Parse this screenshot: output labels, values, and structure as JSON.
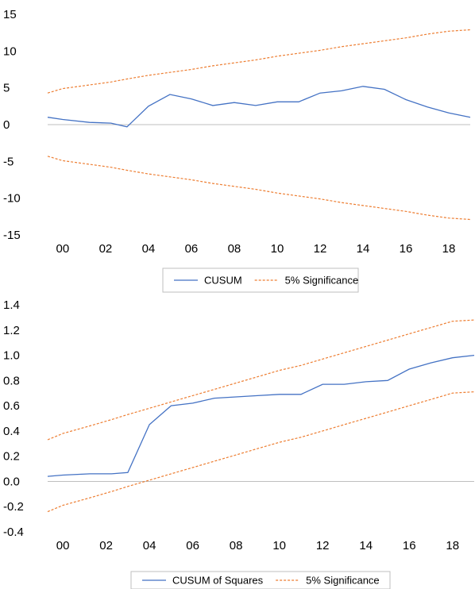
{
  "chart_data": [
    {
      "type": "line",
      "x": [
        1999.3,
        2000,
        2001.25,
        2002.25,
        2003,
        2004,
        2005,
        2006,
        2007,
        2008,
        2009,
        2010,
        2011,
        2012,
        2013,
        2014,
        2015,
        2016,
        2017,
        2018,
        2019
      ],
      "x_tick_labels": [
        "00",
        "02",
        "04",
        "06",
        "08",
        "10",
        "12",
        "14",
        "16",
        "18"
      ],
      "x_tick_values": [
        2000,
        2002,
        2004,
        2006,
        2008,
        2010,
        2012,
        2014,
        2016,
        2018
      ],
      "xlim": [
        1999.3,
        2019
      ],
      "ylim": [
        -15,
        15
      ],
      "y_ticks": [
        15,
        10,
        5,
        0,
        -5,
        -10,
        -15
      ],
      "y_tick_labels": [
        "15",
        "10",
        "5",
        "0",
        "-5",
        "-10",
        "-15"
      ],
      "series": [
        {
          "name": "CUSUM",
          "color": "#4472c4",
          "style": "solid",
          "values": [
            1.0,
            0.7,
            0.3,
            0.2,
            -0.3,
            2.5,
            4.1,
            3.5,
            2.6,
            3.0,
            2.6,
            3.1,
            3.1,
            4.3,
            4.6,
            5.2,
            4.8,
            3.4,
            2.4,
            1.6,
            1.0
          ]
        },
        {
          "name": "5% Significance",
          "color": "#ed7d31",
          "style": "dashed",
          "values": [
            4.3,
            4.9,
            5.4,
            5.8,
            6.2,
            6.7,
            7.1,
            7.5,
            8.0,
            8.4,
            8.8,
            9.3,
            9.7,
            10.1,
            10.6,
            11.0,
            11.4,
            11.8,
            12.3,
            12.7,
            12.9
          ]
        },
        {
          "name": "5% Significance",
          "color": "#ed7d31",
          "style": "dashed",
          "values": [
            -4.3,
            -4.9,
            -5.4,
            -5.8,
            -6.2,
            -6.7,
            -7.1,
            -7.5,
            -8.0,
            -8.4,
            -8.8,
            -9.3,
            -9.7,
            -10.1,
            -10.6,
            -11.0,
            -11.4,
            -11.8,
            -12.3,
            -12.7,
            -12.9
          ]
        }
      ],
      "legend": [
        "CUSUM",
        "5% Significance"
      ],
      "legend_placement": "bottom-center",
      "grid": false,
      "zero_line": true
    },
    {
      "type": "line",
      "x": [
        1999.3,
        2000,
        2001.25,
        2002.25,
        2003,
        2004,
        2005,
        2006,
        2007,
        2008,
        2009,
        2010,
        2011,
        2012,
        2013,
        2014,
        2015,
        2016,
        2017,
        2018,
        2019
      ],
      "x_tick_labels": [
        "00",
        "02",
        "04",
        "06",
        "08",
        "10",
        "12",
        "14",
        "16",
        "18"
      ],
      "x_tick_values": [
        2000,
        2002,
        2004,
        2006,
        2008,
        2010,
        2012,
        2014,
        2016,
        2018
      ],
      "xlim": [
        1999.3,
        2019
      ],
      "ylim": [
        -0.4,
        1.4
      ],
      "y_ticks": [
        1.4,
        1.2,
        1.0,
        0.8,
        0.6,
        0.4,
        0.2,
        0.0,
        -0.2,
        -0.4
      ],
      "y_tick_labels": [
        "1.4",
        "1.2",
        "1.0",
        "0.8",
        "0.6",
        "0.4",
        "0.2",
        "0.0",
        "-0.2",
        "-0.4"
      ],
      "series": [
        {
          "name": "CUSUM of Squares",
          "color": "#4472c4",
          "style": "solid",
          "values": [
            0.04,
            0.05,
            0.06,
            0.06,
            0.07,
            0.45,
            0.6,
            0.62,
            0.66,
            0.67,
            0.68,
            0.69,
            0.69,
            0.77,
            0.77,
            0.79,
            0.8,
            0.89,
            0.94,
            0.98,
            1.0
          ]
        },
        {
          "name": "5% Significance",
          "color": "#ed7d31",
          "style": "dashed",
          "values": [
            0.33,
            0.38,
            0.44,
            0.49,
            0.53,
            0.58,
            0.63,
            0.68,
            0.73,
            0.78,
            0.83,
            0.88,
            0.92,
            0.97,
            1.02,
            1.07,
            1.12,
            1.17,
            1.22,
            1.27,
            1.28
          ]
        },
        {
          "name": "5% Significance",
          "color": "#ed7d31",
          "style": "dashed",
          "values": [
            -0.24,
            -0.19,
            -0.13,
            -0.08,
            -0.04,
            0.01,
            0.06,
            0.11,
            0.16,
            0.21,
            0.26,
            0.31,
            0.35,
            0.4,
            0.45,
            0.5,
            0.55,
            0.6,
            0.65,
            0.7,
            0.71
          ]
        }
      ],
      "legend": [
        "CUSUM of Squares",
        "5% Significance"
      ],
      "legend_placement": "bottom-center",
      "grid": false,
      "zero_line": true
    }
  ]
}
